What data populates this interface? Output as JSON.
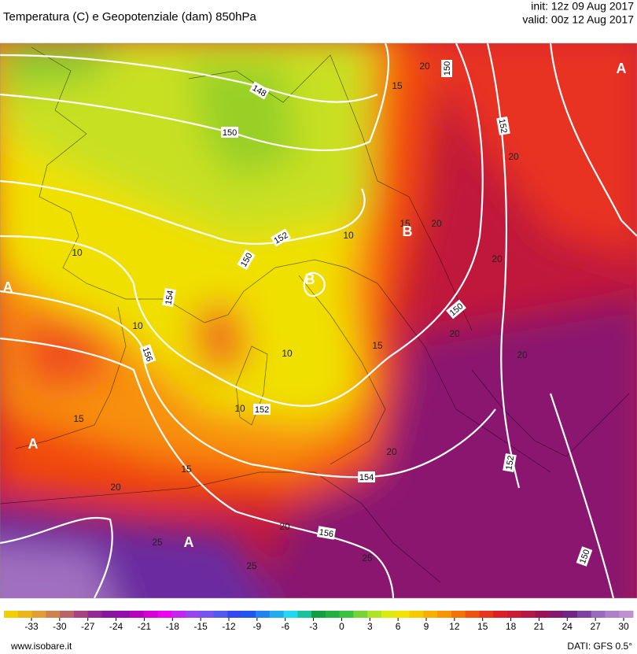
{
  "header": {
    "title": "Temperatura (C) e Geopotenziale (dam) 850hPa",
    "init": "init: 12z 09 Aug 2017",
    "valid": "valid: 00z 12 Aug 2017"
  },
  "map": {
    "isohypse_labels": [
      "148",
      "150",
      "150",
      "152",
      "152",
      "150",
      "154",
      "156",
      "152",
      "150",
      "154",
      "156",
      "152",
      "150"
    ],
    "isotherm_labels": [
      "15",
      "20",
      "20",
      "15",
      "20",
      "10",
      "10",
      "20",
      "10",
      "15",
      "10",
      "20",
      "20",
      "10",
      "15",
      "20",
      "15",
      "20",
      "20",
      "25",
      "25",
      "25"
    ],
    "pressure_centers": [
      "A",
      "B",
      "B",
      "A",
      "A",
      "A"
    ]
  },
  "colorbar": {
    "labels": [
      "-33",
      "-30",
      "-27",
      "-24",
      "-21",
      "-18",
      "-15",
      "-12",
      "-9",
      "-6",
      "-3",
      "0",
      "3",
      "6",
      "9",
      "12",
      "15",
      "18",
      "21",
      "24",
      "27",
      "30"
    ]
  },
  "footer": {
    "source": "www.isobare.it",
    "data": "DATI: GFS 0.5°"
  }
}
